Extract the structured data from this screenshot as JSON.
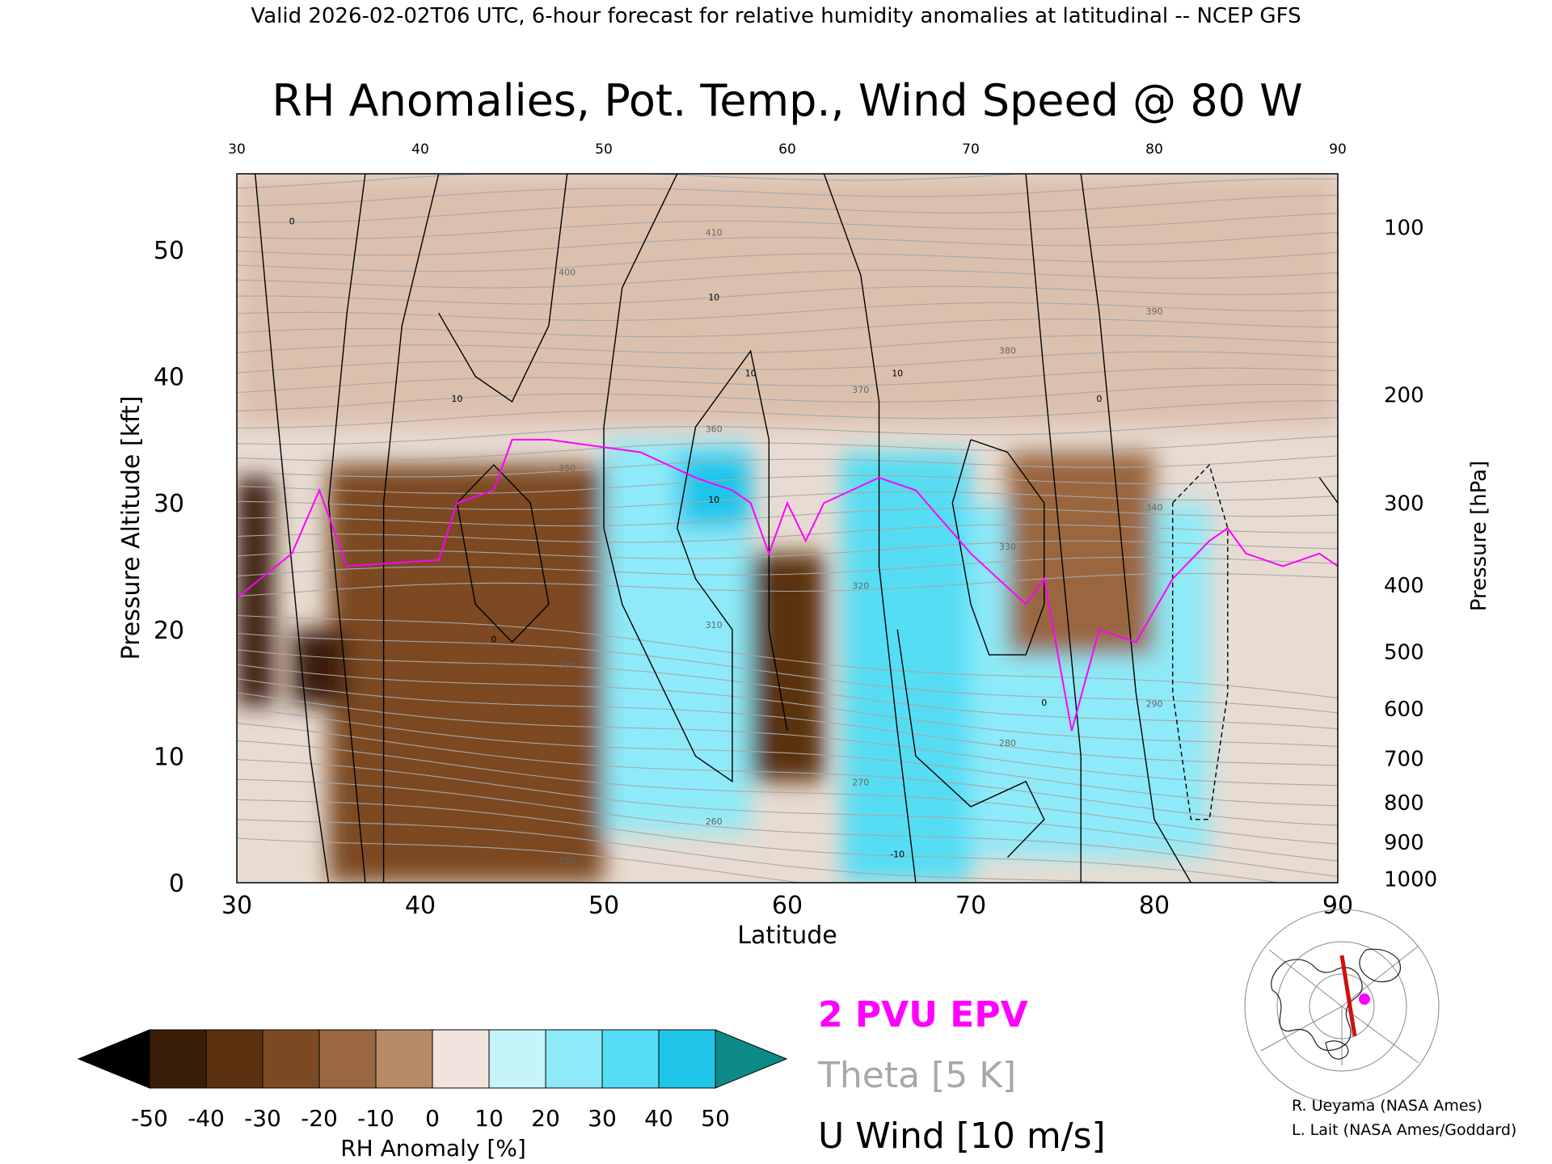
{
  "header": {
    "caption": "Valid 2026-02-02T06 UTC, 6-hour forecast for relative humidity anomalies at latitudinal -- NCEP GFS"
  },
  "chart_data": {
    "type": "heatmap",
    "title": "RH Anomalies, Pot. Temp., Wind Speed @ 80 W",
    "xlabel": "Latitude",
    "ylabel": "Pressure Altitude [kft]",
    "ylabel_right": "Pressure [hPa]",
    "xlim": [
      30,
      90
    ],
    "ylim": [
      0,
      56
    ],
    "x_ticks": [
      30,
      40,
      50,
      60,
      70,
      80,
      90
    ],
    "y_ticks": [
      0,
      10,
      20,
      30,
      40,
      50
    ],
    "pressure_ticks": [
      {
        "label": "100",
        "hpa": 100
      },
      {
        "label": "200",
        "hpa": 200
      },
      {
        "label": "300",
        "hpa": 300
      },
      {
        "label": "400",
        "hpa": 400
      },
      {
        "label": "500",
        "hpa": 500
      },
      {
        "label": "600",
        "hpa": 600
      },
      {
        "label": "700",
        "hpa": 700
      },
      {
        "label": "800",
        "hpa": 800
      },
      {
        "label": "900",
        "hpa": 900
      },
      {
        "label": "1000",
        "hpa": 1000
      }
    ],
    "colorbar": {
      "label": "RH Anomaly [%]",
      "ticks": [
        "-50",
        "-40",
        "-30",
        "-20",
        "-10",
        "0",
        "10",
        "20",
        "30",
        "40",
        "50"
      ],
      "colors": [
        "#000000",
        "#3a1e08",
        "#5a300f",
        "#7b4a22",
        "#9a6640",
        "#b98a68",
        "#dcc0ae",
        "#f0e4dc",
        "#e8fbfd",
        "#c6f4fb",
        "#8eeaf8",
        "#54ddf4",
        "#1fc6ea",
        "#0a9ac4",
        "#0d8a86"
      ]
    },
    "rh_anomaly_regions": [
      {
        "lat": [
          30,
          90
        ],
        "kft": [
          36,
          56
        ],
        "value": -5
      },
      {
        "lat": [
          35,
          50
        ],
        "kft": [
          0,
          33
        ],
        "value": -30
      },
      {
        "lat": [
          50,
          58
        ],
        "kft": [
          4,
          35
        ],
        "value": 25
      },
      {
        "lat": [
          54,
          58
        ],
        "kft": [
          28,
          34
        ],
        "value": 45
      },
      {
        "lat": [
          58,
          62
        ],
        "kft": [
          8,
          26
        ],
        "value": -35
      },
      {
        "lat": [
          63,
          70
        ],
        "kft": [
          0,
          34
        ],
        "value": 30
      },
      {
        "lat": [
          70,
          83
        ],
        "kft": [
          2,
          30
        ],
        "value": 25
      },
      {
        "lat": [
          72,
          80
        ],
        "kft": [
          18,
          34
        ],
        "value": -15
      },
      {
        "lat": [
          30,
          32
        ],
        "kft": [
          14,
          32
        ],
        "value": -45
      },
      {
        "lat": [
          33,
          36
        ],
        "kft": [
          14,
          20
        ],
        "value": -50
      }
    ],
    "u_wind_contour_levels": [
      "0",
      "10",
      "10",
      "10",
      "10",
      "10",
      "0",
      "0",
      "0",
      "-10"
    ],
    "theta_contour_levels": [
      "250",
      "260",
      "270",
      "280",
      "290",
      "300",
      "310",
      "320",
      "330",
      "340",
      "350",
      "360",
      "370",
      "380",
      "390",
      "400",
      "410"
    ],
    "epv_2pvu_line": [
      [
        30,
        22.5
      ],
      [
        33,
        26
      ],
      [
        34.5,
        31
      ],
      [
        36,
        25
      ],
      [
        41,
        25.5
      ],
      [
        42,
        30
      ],
      [
        44,
        31
      ],
      [
        45,
        35
      ],
      [
        47,
        35
      ],
      [
        52,
        34
      ],
      [
        55,
        32
      ],
      [
        57,
        31
      ],
      [
        58,
        30
      ],
      [
        59,
        26
      ],
      [
        60,
        30
      ],
      [
        61,
        27
      ],
      [
        62,
        30
      ],
      [
        65,
        32
      ],
      [
        67,
        31
      ],
      [
        70,
        26
      ],
      [
        73,
        22
      ],
      [
        74,
        24
      ],
      [
        75.5,
        12
      ],
      [
        77,
        20
      ],
      [
        79,
        19
      ],
      [
        81,
        24
      ],
      [
        83,
        27
      ],
      [
        84,
        28
      ],
      [
        85,
        26
      ],
      [
        87,
        25
      ],
      [
        89,
        26
      ],
      [
        90,
        25
      ]
    ],
    "legend": [
      {
        "label": "2 PVU EPV",
        "color": "#ff00ff"
      },
      {
        "label": "Theta [5 K]",
        "color": "#a8a8a8"
      },
      {
        "label": "U Wind [10 m/s]",
        "color": "#000000"
      }
    ]
  },
  "inset_map": {
    "section_color": "#cc1111",
    "marker_color": "#ff00ff"
  },
  "credits": {
    "line1": "R. Ueyama (NASA Ames)",
    "line2": "L. Lait (NASA Ames/Goddard)"
  }
}
